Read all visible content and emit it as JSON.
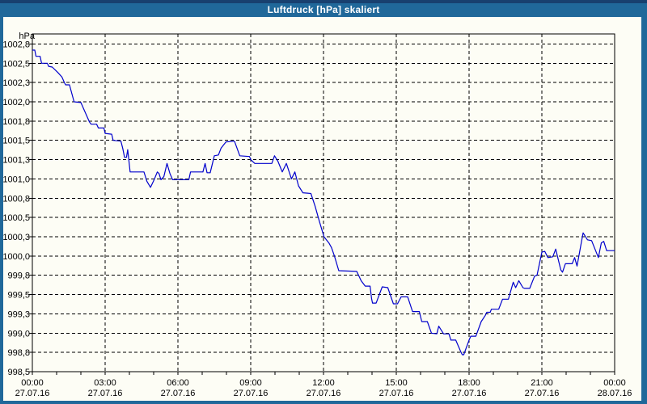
{
  "window": {
    "title": "Luftdruck [hPa] skaliert"
  },
  "colors": {
    "titlebar": "#20689a",
    "titlebar_top_strip": "#18406f",
    "chart_background": "#fdfdf5",
    "grid": "#000000",
    "text": "#000000",
    "series_line": "#0000cc"
  },
  "chart_data": {
    "type": "line",
    "title": "Luftdruck [hPa] skaliert",
    "grid": "on",
    "legend": "none",
    "x_axis": {
      "range_hours": [
        0,
        24
      ],
      "major_tick_every_hours": 3,
      "minor_tick_every_hours": 1,
      "ticks": [
        {
          "hour": 0,
          "time": "00:00",
          "date": "27.07.16"
        },
        {
          "hour": 3,
          "time": "03:00",
          "date": "27.07.16"
        },
        {
          "hour": 6,
          "time": "06:00",
          "date": "27.07.16"
        },
        {
          "hour": 9,
          "time": "09:00",
          "date": "27.07.16"
        },
        {
          "hour": 12,
          "time": "12:00",
          "date": "27.07.16"
        },
        {
          "hour": 15,
          "time": "15:00",
          "date": "27.07.16"
        },
        {
          "hour": 18,
          "time": "18:00",
          "date": "27.07.16"
        },
        {
          "hour": 21,
          "time": "21:00",
          "date": "27.07.16"
        },
        {
          "hour": 24,
          "time": "00:00",
          "date": "28.07.16"
        }
      ]
    },
    "y_axis": {
      "unit_label": "hPa",
      "axis_min": 998.55,
      "axis_max": 1002.93,
      "labels": [
        "1002,8",
        "1002,5",
        "1002,3",
        "1002,0",
        "1001,8",
        "1001,5",
        "1001,3",
        "1001,0",
        "1000,8",
        "1000,5",
        "1000,3",
        "1000,0",
        "999,8",
        "999,5",
        "999,3",
        "999,0",
        "998,8",
        "998,5"
      ],
      "values": [
        1002.8,
        1002.55,
        1002.3,
        1002.05,
        1001.8,
        1001.55,
        1001.3,
        1001.05,
        1000.8,
        1000.55,
        1000.3,
        1000.05,
        999.8,
        999.55,
        999.3,
        999.05,
        998.8,
        998.55
      ]
    },
    "series": [
      {
        "name": "Luftdruck",
        "color": "#0000cc",
        "points": [
          [
            0.0,
            1002.72
          ],
          [
            0.1,
            1002.72
          ],
          [
            0.15,
            1002.64
          ],
          [
            0.32,
            1002.64
          ],
          [
            0.38,
            1002.55
          ],
          [
            0.62,
            1002.55
          ],
          [
            0.67,
            1002.51
          ],
          [
            0.82,
            1002.5
          ],
          [
            1.05,
            1002.43
          ],
          [
            1.22,
            1002.37
          ],
          [
            1.32,
            1002.3
          ],
          [
            1.37,
            1002.27
          ],
          [
            1.53,
            1002.27
          ],
          [
            1.72,
            1002.05
          ],
          [
            2.0,
            1002.04
          ],
          [
            2.35,
            1001.79
          ],
          [
            2.42,
            1001.76
          ],
          [
            2.65,
            1001.76
          ],
          [
            2.72,
            1001.71
          ],
          [
            2.95,
            1001.71
          ],
          [
            3.0,
            1001.64
          ],
          [
            3.27,
            1001.63
          ],
          [
            3.33,
            1001.55
          ],
          [
            3.65,
            1001.54
          ],
          [
            3.73,
            1001.44
          ],
          [
            3.8,
            1001.33
          ],
          [
            3.88,
            1001.33
          ],
          [
            3.93,
            1001.43
          ],
          [
            4.03,
            1001.14
          ],
          [
            4.6,
            1001.14
          ],
          [
            4.72,
            1001.02
          ],
          [
            4.87,
            1000.94
          ],
          [
            5.02,
            1001.04
          ],
          [
            5.15,
            1001.14
          ],
          [
            5.22,
            1001.12
          ],
          [
            5.3,
            1001.04
          ],
          [
            5.42,
            1001.08
          ],
          [
            5.55,
            1001.25
          ],
          [
            5.67,
            1001.12
          ],
          [
            5.78,
            1001.04
          ],
          [
            6.45,
            1001.04
          ],
          [
            6.52,
            1001.14
          ],
          [
            7.03,
            1001.14
          ],
          [
            7.12,
            1001.25
          ],
          [
            7.2,
            1001.13
          ],
          [
            7.33,
            1001.13
          ],
          [
            7.5,
            1001.35
          ],
          [
            7.67,
            1001.36
          ],
          [
            7.78,
            1001.45
          ],
          [
            7.98,
            1001.53
          ],
          [
            8.33,
            1001.54
          ],
          [
            8.55,
            1001.35
          ],
          [
            8.95,
            1001.34
          ],
          [
            9.0,
            1001.3
          ],
          [
            9.17,
            1001.25
          ],
          [
            9.87,
            1001.25
          ],
          [
            9.98,
            1001.35
          ],
          [
            10.12,
            1001.28
          ],
          [
            10.3,
            1001.14
          ],
          [
            10.47,
            1001.25
          ],
          [
            10.68,
            1001.05
          ],
          [
            10.82,
            1001.14
          ],
          [
            10.97,
            1000.96
          ],
          [
            11.15,
            1000.87
          ],
          [
            11.48,
            1000.86
          ],
          [
            11.65,
            1000.7
          ],
          [
            11.83,
            1000.5
          ],
          [
            12.02,
            1000.3
          ],
          [
            12.22,
            1000.22
          ],
          [
            12.33,
            1000.16
          ],
          [
            12.45,
            1000.05
          ],
          [
            12.63,
            999.86
          ],
          [
            13.37,
            999.85
          ],
          [
            13.55,
            999.73
          ],
          [
            13.72,
            999.66
          ],
          [
            13.92,
            999.66
          ],
          [
            13.98,
            999.5
          ],
          [
            14.02,
            999.44
          ],
          [
            14.17,
            999.44
          ],
          [
            14.42,
            999.65
          ],
          [
            14.65,
            999.64
          ],
          [
            14.88,
            999.43
          ],
          [
            15.05,
            999.43
          ],
          [
            15.2,
            999.52
          ],
          [
            15.47,
            999.52
          ],
          [
            15.67,
            999.33
          ],
          [
            15.95,
            999.33
          ],
          [
            16.05,
            999.2
          ],
          [
            16.28,
            999.2
          ],
          [
            16.45,
            999.05
          ],
          [
            16.67,
            999.04
          ],
          [
            16.75,
            999.14
          ],
          [
            16.95,
            999.04
          ],
          [
            17.17,
            999.04
          ],
          [
            17.25,
            998.96
          ],
          [
            17.45,
            998.96
          ],
          [
            17.67,
            998.8
          ],
          [
            17.72,
            998.77
          ],
          [
            17.78,
            998.77
          ],
          [
            18.0,
            998.96
          ],
          [
            18.07,
            999.01
          ],
          [
            18.28,
            999.01
          ],
          [
            18.5,
            999.2
          ],
          [
            18.67,
            999.28
          ],
          [
            18.73,
            999.32
          ],
          [
            18.87,
            999.32
          ],
          [
            18.92,
            999.36
          ],
          [
            19.22,
            999.36
          ],
          [
            19.38,
            999.49
          ],
          [
            19.62,
            999.49
          ],
          [
            19.82,
            999.71
          ],
          [
            19.92,
            999.64
          ],
          [
            20.05,
            999.73
          ],
          [
            20.22,
            999.64
          ],
          [
            20.28,
            999.63
          ],
          [
            20.5,
            999.63
          ],
          [
            20.7,
            999.79
          ],
          [
            20.8,
            999.8
          ],
          [
            21.0,
            1000.1
          ],
          [
            21.12,
            1000.11
          ],
          [
            21.25,
            1000.03
          ],
          [
            21.45,
            1000.04
          ],
          [
            21.57,
            1000.14
          ],
          [
            21.78,
            999.87
          ],
          [
            21.85,
            999.84
          ],
          [
            21.97,
            999.95
          ],
          [
            22.25,
            999.95
          ],
          [
            22.35,
            1000.03
          ],
          [
            22.45,
            999.92
          ],
          [
            22.67,
            1000.3
          ],
          [
            22.7,
            1000.35
          ],
          [
            22.88,
            1000.26
          ],
          [
            23.05,
            1000.25
          ],
          [
            23.33,
            1000.03
          ],
          [
            23.45,
            1000.22
          ],
          [
            23.55,
            1000.24
          ],
          [
            23.67,
            1000.12
          ],
          [
            24.0,
            1000.12
          ]
        ]
      }
    ]
  }
}
